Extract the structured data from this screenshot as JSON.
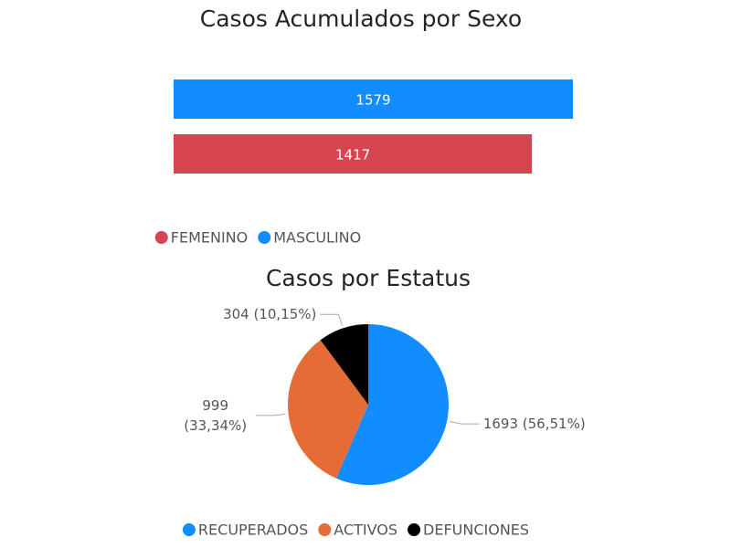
{
  "chart_data": [
    {
      "type": "hbar",
      "title": "Casos Acumulados por Sexo",
      "series": [
        {
          "name": "FEMENINO",
          "color": "#D64550",
          "values": [
            1417
          ]
        },
        {
          "name": "MASCULINO",
          "color": "#118DFF",
          "values": [
            1579
          ]
        }
      ]
    },
    {
      "type": "pie",
      "title": "Casos por Estatus",
      "categories": [
        "RECUPERADOS",
        "ACTIVOS",
        "DEFUNCIONES"
      ],
      "values": [
        1693,
        999,
        304
      ],
      "value_labels": [
        "1693 (56,51%)",
        "999 (33,34%)",
        "304 (10,15%)"
      ],
      "colors": [
        "#118DFF",
        "#E66C37",
        "#000000"
      ]
    }
  ]
}
